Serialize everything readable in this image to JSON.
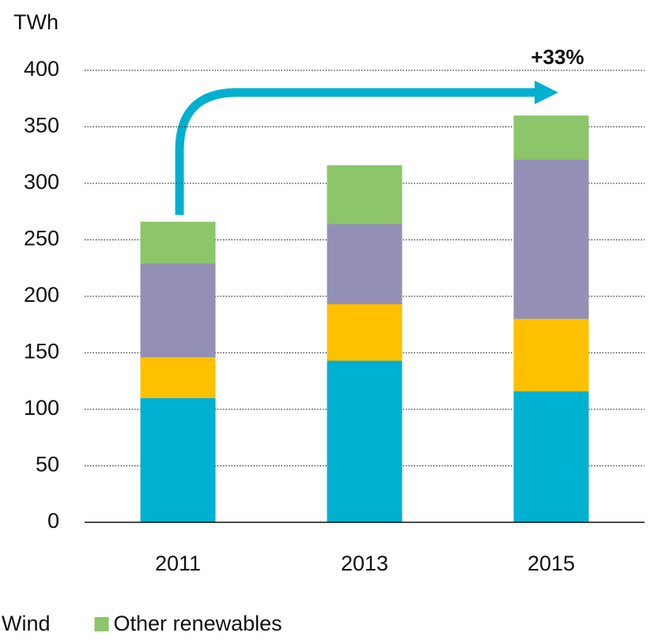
{
  "chart_data": {
    "type": "stacked_bar",
    "y_label": "TWh",
    "annotation": "+33%",
    "categories": [
      "2011",
      "2013",
      "2015"
    ],
    "series": [
      {
        "color": "#00b0d0",
        "values": [
          110,
          143,
          116
        ]
      },
      {
        "color": "#ffc000",
        "values": [
          36,
          50,
          64
        ]
      },
      {
        "name": "Wind",
        "color": "#9490b5",
        "values": [
          83,
          71,
          141
        ]
      },
      {
        "name": "Other renewables",
        "color": "#8cc56a",
        "values": [
          37,
          52,
          39
        ]
      }
    ],
    "ylim": [
      0,
      400
    ],
    "yticks": [
      0,
      50,
      100,
      150,
      200,
      250,
      300,
      350,
      400
    ],
    "grid": true
  }
}
